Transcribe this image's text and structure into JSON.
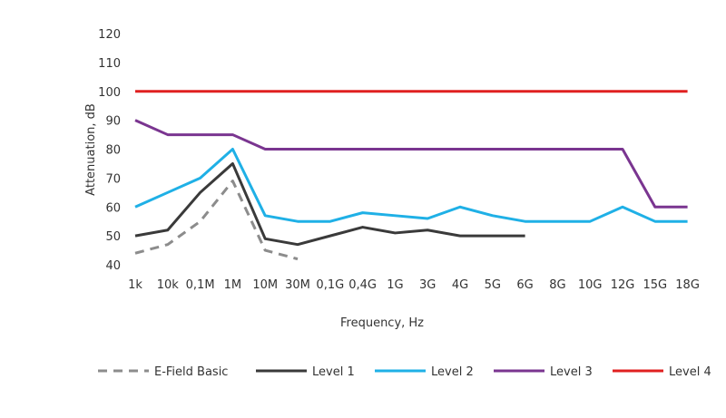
{
  "chart_data": {
    "type": "line",
    "xlabel": "Frequency, Hz",
    "ylabel": "Attenuation, dB",
    "ylim": [
      40,
      120
    ],
    "yticks": [
      40,
      50,
      60,
      70,
      80,
      90,
      100,
      110,
      120
    ],
    "grid": false,
    "legend_position": "bottom",
    "categories": [
      "1k",
      "10k",
      "0,1M",
      "1M",
      "10M",
      "30M",
      "0,1G",
      "0,4G",
      "1G",
      "3G",
      "4G",
      "5G",
      "6G",
      "8G",
      "10G",
      "12G",
      "15G",
      "18G"
    ],
    "series": [
      {
        "name": "E-Field Basic",
        "color": "#8c8c8c",
        "dashed": true,
        "values": [
          44,
          47,
          55,
          69,
          45,
          42,
          null,
          null,
          null,
          null,
          null,
          null,
          null,
          null,
          null,
          null,
          null,
          null
        ]
      },
      {
        "name": "Level 1",
        "color": "#3a3a3a",
        "dashed": false,
        "values": [
          50,
          52,
          65,
          75,
          49,
          47,
          50,
          53,
          51,
          52,
          50,
          50,
          50,
          null,
          null,
          null,
          null,
          null
        ]
      },
      {
        "name": "Level 2",
        "color": "#1fb0e6",
        "dashed": false,
        "values": [
          60,
          65,
          70,
          80,
          57,
          55,
          55,
          58,
          57,
          56,
          60,
          57,
          55,
          55,
          55,
          60,
          55,
          55
        ]
      },
      {
        "name": "Level 3",
        "color": "#7a3590",
        "dashed": false,
        "values": [
          90,
          85,
          85,
          85,
          80,
          80,
          80,
          80,
          80,
          80,
          80,
          80,
          80,
          80,
          80,
          80,
          60,
          60
        ]
      },
      {
        "name": "Level 4",
        "color": "#e02020",
        "dashed": false,
        "values": [
          100,
          100,
          100,
          100,
          100,
          100,
          100,
          100,
          100,
          100,
          100,
          100,
          100,
          100,
          100,
          100,
          100,
          100
        ]
      }
    ]
  }
}
